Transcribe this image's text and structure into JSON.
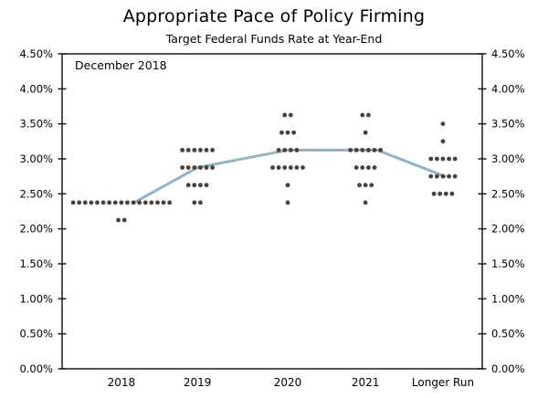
{
  "chart_data": {
    "type": "scatter",
    "variant": "fomc-dot-plot",
    "title": "Appropriate Pace of Policy Firming",
    "subtitle": "Target Federal Funds Rate at Year-End",
    "annotation": "December 2018",
    "x_categories": [
      "2018",
      "2019",
      "2020",
      "2021",
      "Longer Run"
    ],
    "y_axis": {
      "tick_labels": [
        "4.50%",
        "4.00%",
        "3.50%",
        "3.00%",
        "2.50%",
        "2.00%",
        "1.50%",
        "1.00%",
        "0.50%",
        "0.00%"
      ],
      "tick_values": [
        4.5,
        4.0,
        3.5,
        3.0,
        2.5,
        2.0,
        1.5,
        1.0,
        0.5,
        0.0
      ],
      "range": [
        0,
        4.5
      ],
      "label_sides": "both",
      "grid": false
    },
    "columns": [
      {
        "label": "2018",
        "dots": [
          {
            "rate": 2.375,
            "count": 17
          },
          {
            "rate": 2.125,
            "count": 2
          }
        ]
      },
      {
        "label": "2019",
        "dots": [
          {
            "rate": 3.125,
            "count": 6
          },
          {
            "rate": 2.875,
            "count": 6
          },
          {
            "rate": 2.625,
            "count": 4
          },
          {
            "rate": 2.375,
            "count": 2
          }
        ]
      },
      {
        "label": "2020",
        "dots": [
          {
            "rate": 3.625,
            "count": 2
          },
          {
            "rate": 3.375,
            "count": 3
          },
          {
            "rate": 3.125,
            "count": 4
          },
          {
            "rate": 2.875,
            "count": 6
          },
          {
            "rate": 2.625,
            "count": 1
          },
          {
            "rate": 2.375,
            "count": 1
          }
        ]
      },
      {
        "label": "2021",
        "dots": [
          {
            "rate": 3.625,
            "count": 2
          },
          {
            "rate": 3.375,
            "count": 1
          },
          {
            "rate": 3.125,
            "count": 6
          },
          {
            "rate": 2.875,
            "count": 4
          },
          {
            "rate": 2.625,
            "count": 3
          },
          {
            "rate": 2.375,
            "count": 1
          }
        ]
      },
      {
        "label": "Longer Run",
        "dots": [
          {
            "rate": 3.5,
            "count": 1
          },
          {
            "rate": 3.25,
            "count": 1
          },
          {
            "rate": 3.0,
            "count": 5
          },
          {
            "rate": 2.75,
            "count": 5
          },
          {
            "rate": 2.5,
            "count": 4
          }
        ]
      }
    ],
    "median_line": {
      "values": [
        2.375,
        2.875,
        3.125,
        3.125,
        2.75
      ]
    },
    "colors": {
      "dot": "#4b4037",
      "median_line": "#8fb3c8",
      "axis": "#1a1a1a",
      "text": "#000000",
      "background": "#ffffff"
    }
  }
}
